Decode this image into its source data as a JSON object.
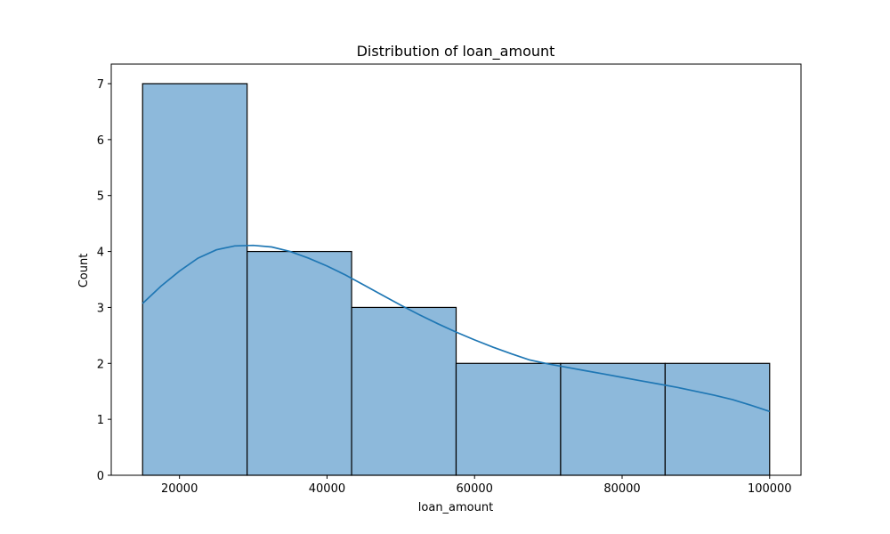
{
  "chart_data": {
    "type": "bar",
    "title": "Distribution of loan_amount",
    "xlabel": "loan_amount",
    "ylabel": "Count",
    "bins": [
      {
        "x0": 15000,
        "x1": 29166.67,
        "count": 7
      },
      {
        "x0": 29166.67,
        "x1": 43333.33,
        "count": 4
      },
      {
        "x0": 43333.33,
        "x1": 57500,
        "count": 3
      },
      {
        "x0": 57500,
        "x1": 71666.67,
        "count": 2
      },
      {
        "x0": 71666.67,
        "x1": 85833.33,
        "count": 2
      },
      {
        "x0": 85833.33,
        "x1": 100000,
        "count": 2
      }
    ],
    "kde": {
      "x": [
        15000,
        17500,
        20000,
        22500,
        25000,
        27500,
        30000,
        32500,
        35000,
        37500,
        40000,
        42500,
        45000,
        47500,
        50000,
        52500,
        55000,
        57500,
        60000,
        62500,
        65000,
        67500,
        70000,
        72500,
        75000,
        77500,
        80000,
        82500,
        85000,
        87500,
        90000,
        92500,
        95000,
        97500,
        100000
      ],
      "y": [
        3.07,
        3.38,
        3.65,
        3.88,
        4.03,
        4.1,
        4.11,
        4.08,
        4.0,
        3.88,
        3.74,
        3.58,
        3.4,
        3.22,
        3.04,
        2.87,
        2.71,
        2.56,
        2.42,
        2.29,
        2.17,
        2.06,
        1.99,
        1.93,
        1.87,
        1.81,
        1.75,
        1.69,
        1.63,
        1.57,
        1.5,
        1.43,
        1.35,
        1.25,
        1.14
      ]
    },
    "xlim": [
      10750,
      104250
    ],
    "ylim": [
      0,
      7.35
    ],
    "xticks": [
      20000,
      40000,
      60000,
      80000,
      100000
    ],
    "yticks": [
      0,
      1,
      2,
      3,
      4,
      5,
      6,
      7
    ],
    "grid": false,
    "colors": {
      "bar_fill": "#8db9db",
      "bar_edge": "#000000",
      "kde_line": "#1f77b4"
    }
  }
}
